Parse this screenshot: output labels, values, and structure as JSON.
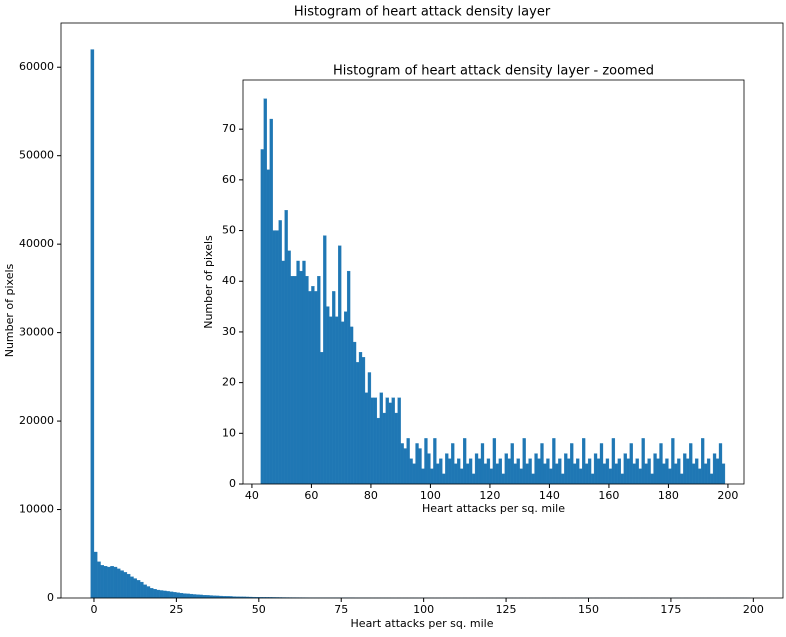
{
  "chart_data": [
    {
      "type": "histogram",
      "title": "Histogram of heart attack density layer",
      "xlabel": "Heart attacks per sq. mile",
      "ylabel": "Number of pixels",
      "color": "#1f77b4",
      "bins": [
        -1,
        0,
        1,
        2,
        3,
        4,
        5,
        6,
        7,
        8,
        9,
        10,
        11,
        12,
        13,
        14,
        15,
        16,
        17,
        18,
        19,
        20,
        21,
        22,
        23,
        24,
        25,
        26,
        27,
        28,
        29,
        30,
        31,
        32,
        33,
        34,
        35,
        36,
        37,
        38,
        39,
        40,
        41,
        42,
        43,
        44,
        45,
        46,
        47,
        48,
        49,
        50,
        51,
        52,
        53,
        54,
        55,
        56,
        57,
        58,
        59,
        60,
        61,
        62,
        63,
        64,
        65,
        66,
        67,
        68,
        69,
        70,
        71,
        72,
        73,
        74,
        75,
        76,
        77,
        78,
        79,
        80,
        81,
        82,
        83,
        84,
        85,
        86,
        87,
        88,
        89,
        90,
        91,
        92,
        93,
        94,
        95,
        96,
        97,
        98,
        99,
        100,
        101,
        102,
        103,
        104,
        105,
        106,
        107,
        108,
        109,
        110,
        111,
        112,
        113,
        114,
        115,
        116,
        117,
        118,
        119,
        120,
        121,
        122,
        123,
        124,
        125,
        126,
        127,
        128,
        129,
        130,
        131,
        132,
        133,
        134,
        135,
        136,
        137,
        138,
        139,
        140,
        141,
        142,
        143,
        144,
        145,
        146,
        147,
        148,
        149,
        150,
        151,
        152,
        153,
        154,
        155,
        156,
        157,
        158,
        159,
        160,
        161,
        162,
        163,
        164,
        165,
        166,
        167,
        168,
        169,
        170,
        171,
        172,
        173,
        174,
        175,
        176,
        177,
        178,
        179,
        180,
        181,
        182,
        183,
        184,
        185,
        186,
        187,
        188,
        189,
        190,
        191,
        192,
        193,
        194,
        195,
        196,
        197,
        198,
        199
      ],
      "counts": [
        62000,
        5200,
        4100,
        3700,
        3600,
        3500,
        3600,
        3500,
        3300,
        3100,
        2900,
        2700,
        2400,
        2200,
        2000,
        1800,
        1500,
        1300,
        1100,
        1000,
        900,
        850,
        800,
        750,
        700,
        650,
        600,
        550,
        500,
        470,
        440,
        400,
        380,
        350,
        320,
        300,
        280,
        260,
        240,
        220,
        200,
        190,
        180,
        160,
        150,
        140,
        130,
        120,
        110,
        100,
        95,
        90,
        85,
        80,
        75,
        70,
        66,
        62,
        58,
        55,
        52,
        50,
        48,
        46,
        44,
        42,
        40,
        38,
        36,
        34,
        32,
        30,
        28,
        27,
        26,
        25,
        24,
        22,
        20,
        18,
        16,
        14,
        13,
        12,
        12,
        11,
        11,
        10,
        10,
        9,
        9,
        5,
        4,
        6,
        3,
        5,
        4,
        7,
        5,
        4,
        6,
        5,
        4,
        6,
        3,
        5,
        4,
        7,
        5,
        4,
        6,
        5,
        4,
        6,
        3,
        5,
        4,
        7,
        5,
        4,
        6,
        5,
        4,
        6,
        3,
        5,
        4,
        7,
        5,
        4,
        6,
        5,
        4,
        6,
        3,
        5,
        4,
        7,
        5,
        4,
        6,
        5,
        4,
        6,
        3,
        5,
        4,
        7,
        5,
        4,
        6,
        5,
        4,
        6,
        3,
        5,
        4,
        7,
        5,
        4,
        6,
        5,
        4,
        6,
        3,
        5,
        4,
        7,
        5,
        4,
        6,
        5,
        4,
        6,
        3,
        5,
        4,
        7,
        5,
        4,
        6,
        5,
        4,
        6,
        3,
        5,
        4,
        7,
        5,
        4,
        6,
        5,
        4,
        6,
        3,
        5,
        4,
        7,
        5,
        4
      ],
      "xlim": [
        -10,
        209
      ],
      "ylim": [
        0,
        65000
      ],
      "xticks": [
        0,
        25,
        50,
        75,
        100,
        125,
        150,
        175,
        200
      ],
      "yticks": [
        0,
        10000,
        20000,
        30000,
        40000,
        50000,
        60000
      ]
    },
    {
      "type": "histogram",
      "title": "Histogram of heart attack density layer - zoomed",
      "xlabel": "Heart attacks per sq. mile",
      "ylabel": "Number of pixels",
      "color": "#1f77b4",
      "bins": [
        43,
        44,
        45,
        46,
        47,
        48,
        49,
        50,
        51,
        52,
        53,
        54,
        55,
        56,
        57,
        58,
        59,
        60,
        61,
        62,
        63,
        64,
        65,
        66,
        67,
        68,
        69,
        70,
        71,
        72,
        73,
        74,
        75,
        76,
        77,
        78,
        79,
        80,
        81,
        82,
        83,
        84,
        85,
        86,
        87,
        88,
        89,
        90,
        91,
        92,
        93,
        94,
        95,
        96,
        97,
        98,
        99,
        100,
        101,
        102,
        103,
        104,
        105,
        106,
        107,
        108,
        109,
        110,
        111,
        112,
        113,
        114,
        115,
        116,
        117,
        118,
        119,
        120,
        121,
        122,
        123,
        124,
        125,
        126,
        127,
        128,
        129,
        130,
        131,
        132,
        133,
        134,
        135,
        136,
        137,
        138,
        139,
        140,
        141,
        142,
        143,
        144,
        145,
        146,
        147,
        148,
        149,
        150,
        151,
        152,
        153,
        154,
        155,
        156,
        157,
        158,
        159,
        160,
        161,
        162,
        163,
        164,
        165,
        166,
        167,
        168,
        169,
        170,
        171,
        172,
        173,
        174,
        175,
        176,
        177,
        178,
        179,
        180,
        181,
        182,
        183,
        184,
        185,
        186,
        187,
        188,
        189,
        190,
        191,
        192,
        193,
        194,
        195,
        196,
        197,
        198,
        199
      ],
      "counts": [
        66,
        76,
        62,
        72,
        50,
        50,
        52,
        44,
        54,
        46,
        41,
        41,
        44,
        42,
        44,
        41,
        38,
        39,
        38,
        41,
        26,
        49,
        35,
        33,
        38,
        33,
        47,
        32,
        34,
        42,
        31,
        28,
        24,
        26,
        25,
        18,
        22,
        17,
        17,
        13,
        18,
        14,
        17,
        16,
        17,
        14,
        17,
        8,
        7,
        9,
        5,
        4,
        8,
        7,
        3,
        9,
        6,
        3,
        9,
        4,
        5,
        2,
        6,
        5,
        8,
        4,
        5,
        3,
        9,
        4,
        5,
        2,
        6,
        5,
        8,
        4,
        5,
        3,
        9,
        4,
        5,
        2,
        6,
        5,
        8,
        4,
        5,
        3,
        9,
        4,
        5,
        2,
        6,
        5,
        8,
        4,
        5,
        3,
        9,
        4,
        5,
        2,
        6,
        5,
        8,
        4,
        5,
        3,
        9,
        4,
        5,
        2,
        6,
        5,
        8,
        4,
        5,
        3,
        9,
        4,
        5,
        2,
        6,
        5,
        8,
        4,
        5,
        3,
        9,
        4,
        5,
        2,
        6,
        5,
        8,
        4,
        5,
        3,
        9,
        4,
        5,
        2,
        6,
        5,
        8,
        4,
        5,
        3,
        9,
        4,
        5,
        2,
        6,
        5,
        8,
        4
      ],
      "xlim": [
        37,
        205.4
      ],
      "ylim": [
        0,
        79.7
      ],
      "xticks": [
        40,
        60,
        80,
        100,
        120,
        140,
        160,
        180,
        200
      ],
      "yticks": [
        0,
        10,
        20,
        30,
        40,
        50,
        60,
        70
      ]
    }
  ]
}
